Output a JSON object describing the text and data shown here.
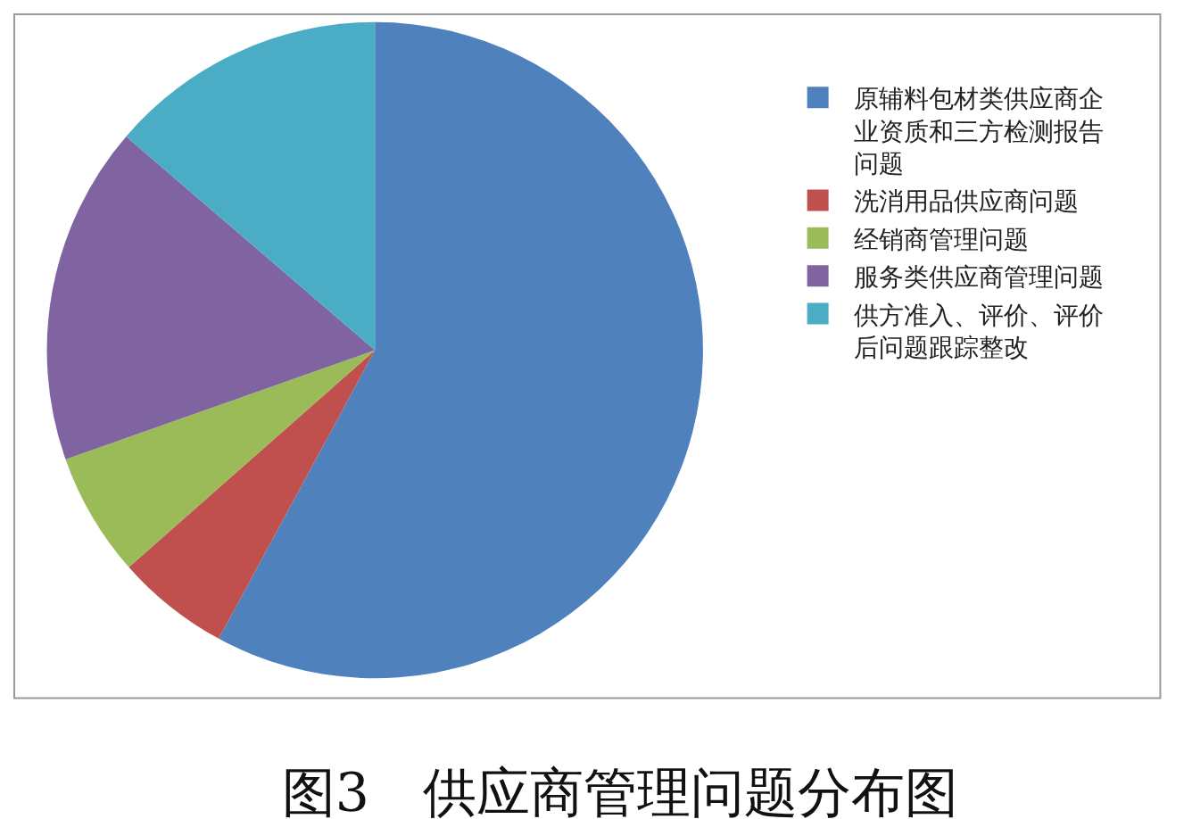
{
  "chart_data": {
    "type": "pie",
    "title": "图3　供应商管理问题分布图",
    "categories": [
      "原辅料包材类供应商企业资质和三方检测报告问题",
      "洗消用品供应商问题",
      "经销商管理问题",
      "服务类供应商管理问题",
      "供方准入、评价、评价后问题跟踪整改"
    ],
    "values": [
      57.9,
      5.6,
      6.1,
      16.7,
      13.7
    ],
    "colors": [
      "#4f81bd",
      "#c0504d",
      "#9bbb59",
      "#8064a2",
      "#4bacc6"
    ],
    "legend": "right"
  }
}
